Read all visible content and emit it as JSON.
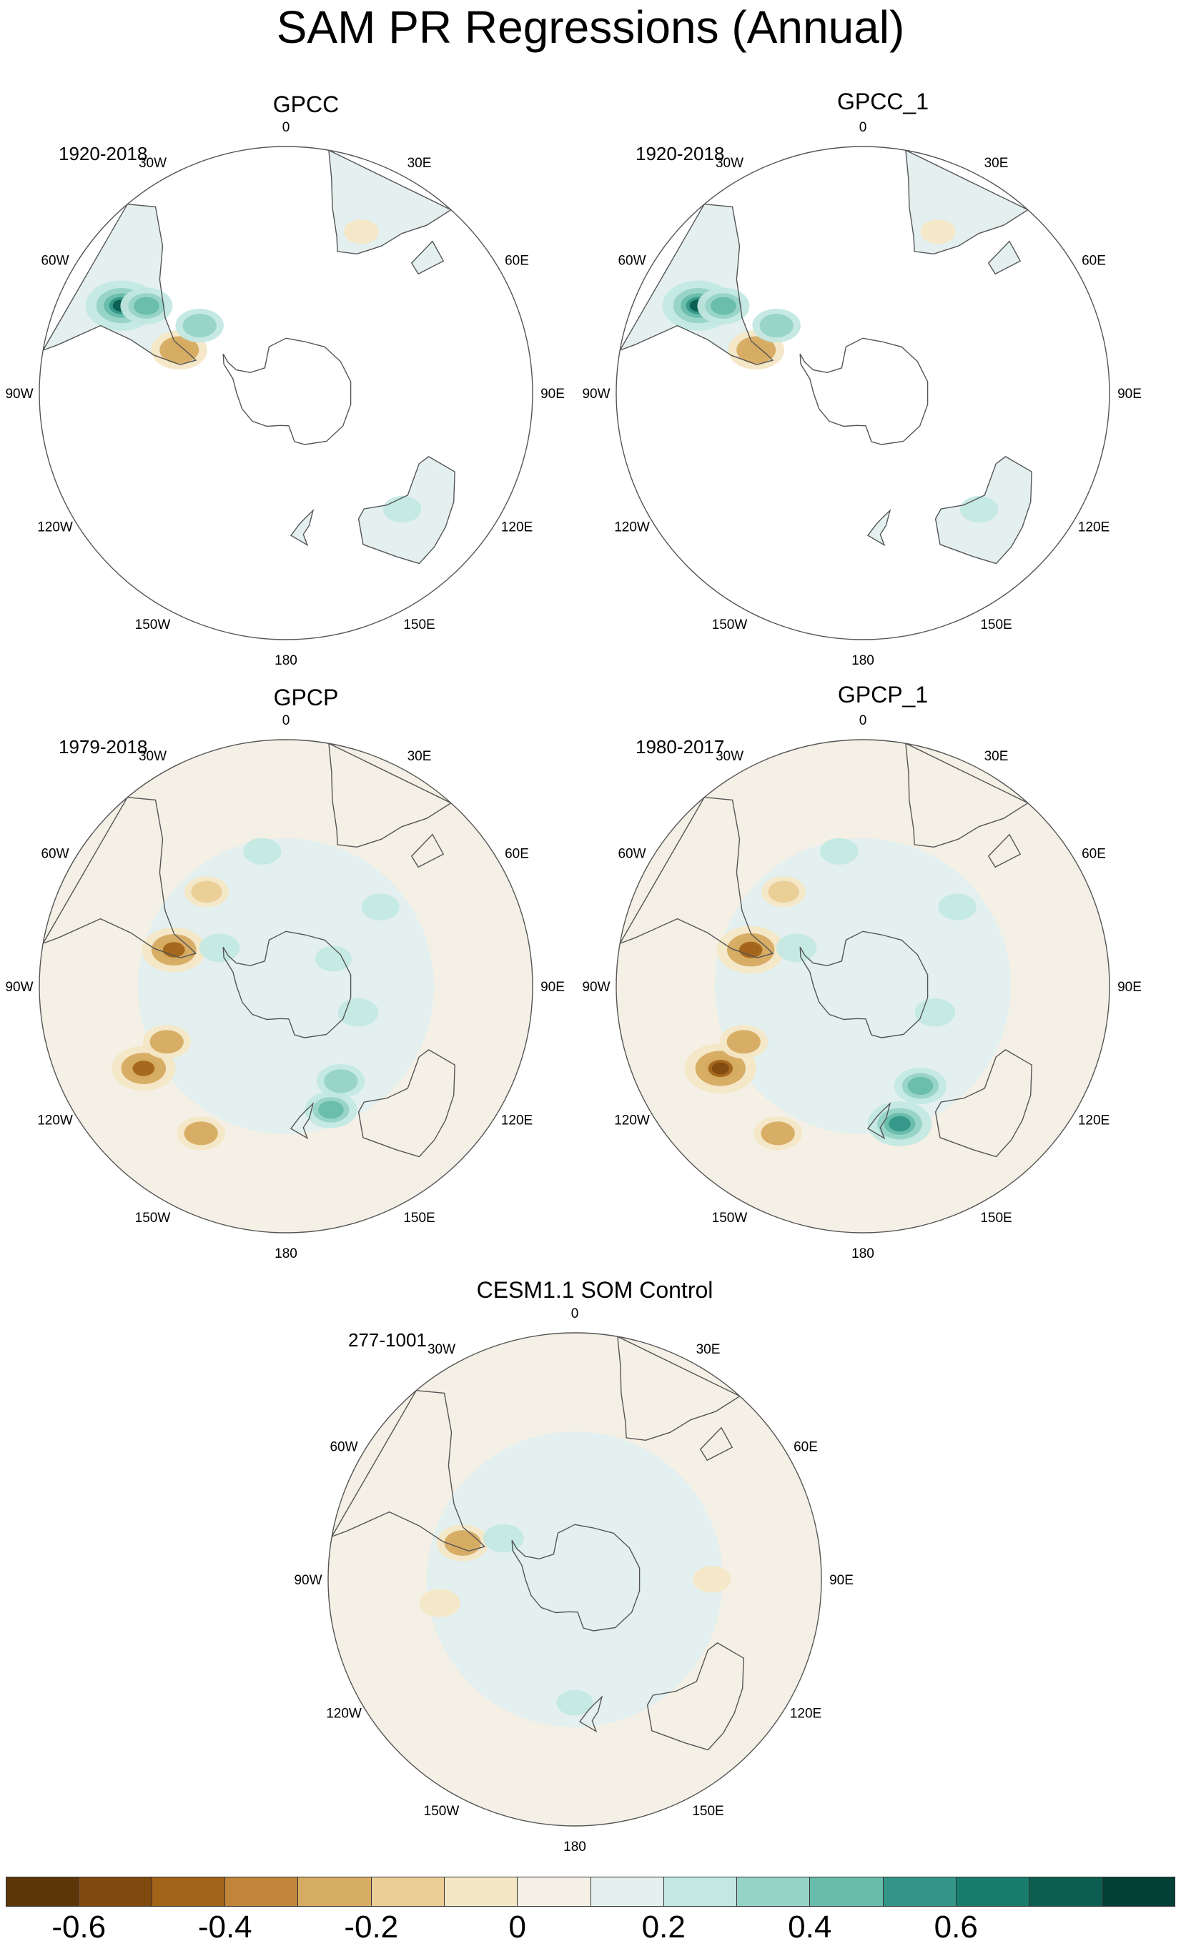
{
  "title": "SAM PR Regressions (Annual)",
  "lon_labels": [
    "0",
    "30E",
    "60E",
    "90E",
    "120E",
    "150E",
    "180",
    "150W",
    "120W",
    "90W",
    "60W",
    "30W"
  ],
  "panels": [
    {
      "name": "GPCC",
      "period": "1920-2018",
      "coverage": "land-only",
      "anomalies": [
        {
          "lon": -62,
          "lat": -22,
          "val": 0.55
        },
        {
          "lon": -58,
          "lat": -30,
          "val": 0.3
        },
        {
          "lon": -68,
          "lat": -48,
          "val": -0.35
        },
        {
          "lon": -52,
          "lat": -50,
          "val": 0.25
        },
        {
          "lon": 135,
          "lat": -30,
          "val": 0.12
        },
        {
          "lon": 25,
          "lat": -25,
          "val": -0.08
        }
      ]
    },
    {
      "name": "GPCC_1",
      "period": "1920-2018",
      "coverage": "land-only",
      "anomalies": [
        {
          "lon": -62,
          "lat": -22,
          "val": 0.55
        },
        {
          "lon": -58,
          "lat": -30,
          "val": 0.3
        },
        {
          "lon": -68,
          "lat": -48,
          "val": -0.35
        },
        {
          "lon": -52,
          "lat": -50,
          "val": 0.25
        },
        {
          "lon": 135,
          "lat": -30,
          "val": 0.12
        },
        {
          "lon": 25,
          "lat": -25,
          "val": -0.08
        }
      ]
    },
    {
      "name": "GPCP",
      "period": "1979-2018",
      "coverage": "global",
      "anomalies": [
        {
          "lon": -72,
          "lat": -47,
          "val": -0.45
        },
        {
          "lon": -120,
          "lat": -30,
          "val": -0.45
        },
        {
          "lon": -115,
          "lat": -42,
          "val": -0.25
        },
        {
          "lon": -150,
          "lat": -28,
          "val": -0.25
        },
        {
          "lon": 160,
          "lat": -42,
          "val": 0.3
        },
        {
          "lon": 150,
          "lat": -50,
          "val": 0.25
        },
        {
          "lon": 110,
          "lat": -62,
          "val": 0.15
        },
        {
          "lon": -40,
          "lat": -45,
          "val": -0.2
        },
        {
          "lon": -10,
          "lat": -40,
          "val": 0.12
        },
        {
          "lon": 50,
          "lat": -45,
          "val": 0.12
        },
        {
          "lon": 60,
          "lat": -70,
          "val": 0.1
        },
        {
          "lon": -60,
          "lat": -62,
          "val": 0.15
        }
      ]
    },
    {
      "name": "GPCP_1",
      "period": "1980-2017",
      "coverage": "global",
      "anomalies": [
        {
          "lon": -72,
          "lat": -47,
          "val": -0.5
        },
        {
          "lon": -120,
          "lat": -30,
          "val": -0.55
        },
        {
          "lon": -115,
          "lat": -42,
          "val": -0.25
        },
        {
          "lon": -150,
          "lat": -28,
          "val": -0.25
        },
        {
          "lon": 165,
          "lat": -38,
          "val": 0.45
        },
        {
          "lon": 150,
          "lat": -48,
          "val": 0.3
        },
        {
          "lon": 110,
          "lat": -62,
          "val": 0.15
        },
        {
          "lon": -40,
          "lat": -45,
          "val": -0.2
        },
        {
          "lon": -10,
          "lat": -40,
          "val": 0.12
        },
        {
          "lon": 50,
          "lat": -45,
          "val": 0.12
        },
        {
          "lon": -60,
          "lat": -62,
          "val": 0.15
        }
      ]
    },
    {
      "name": "CESM1.1 SOM Control",
      "period": "277-1001",
      "coverage": "global",
      "anomalies": [
        {
          "lon": -72,
          "lat": -47,
          "val": -0.3
        },
        {
          "lon": -100,
          "lat": -40,
          "val": -0.15
        },
        {
          "lon": 90,
          "lat": -40,
          "val": -0.12
        },
        {
          "lon": 180,
          "lat": -45,
          "val": 0.1
        },
        {
          "lon": -60,
          "lat": -60,
          "val": 0.15
        }
      ]
    }
  ],
  "colorbar": {
    "colors": [
      "#5c3509",
      "#804a0f",
      "#a26419",
      "#c0853a",
      "#d6ab62",
      "#e9cd95",
      "#f4e7c6",
      "#f4f0e6",
      "#e3f0ef",
      "#c3e8e1",
      "#96d4c6",
      "#68bcab",
      "#349688",
      "#187d6c",
      "#0b5e50",
      "#033f36"
    ],
    "levels": [
      -0.7,
      -0.6,
      -0.5,
      -0.4,
      -0.3,
      -0.2,
      -0.1,
      -0.05,
      0.05,
      0.1,
      0.2,
      0.3,
      0.4,
      0.5,
      0.6,
      0.7
    ],
    "labels": [
      "-0.6",
      "-0.4",
      "-0.2",
      "0",
      "0.2",
      "0.4",
      "0.6"
    ]
  }
}
